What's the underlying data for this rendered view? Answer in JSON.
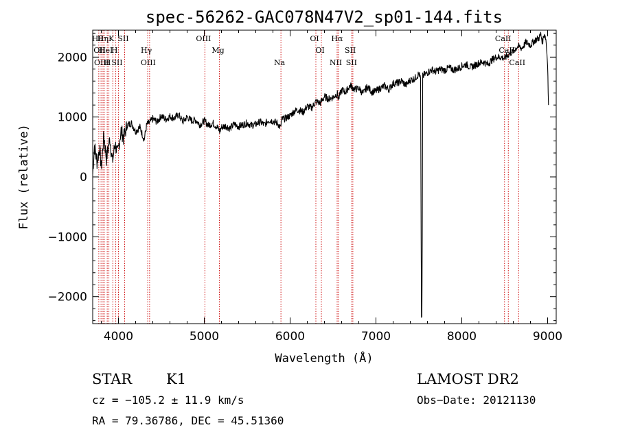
{
  "chart_data": {
    "type": "line",
    "title": "spec-56262-GAC078N47V2_sp01-144.fits",
    "xlabel": "Wavelength (Å)",
    "ylabel": "Flux (relative)",
    "xlim": [
      3700,
      9100
    ],
    "ylim": [
      -2450,
      2450
    ],
    "x_ticks": [
      4000,
      5000,
      6000,
      7000,
      8000,
      9000
    ],
    "y_ticks": [
      -2000,
      -1000,
      0,
      1000,
      2000
    ],
    "grid": false,
    "series": [
      {
        "x": [
          3700,
          3720,
          3750,
          3780,
          3800,
          3830,
          3860,
          3900,
          3930,
          3960,
          3990,
          4030,
          4060,
          4100,
          4150,
          4200,
          4250,
          4300,
          4330,
          4360,
          4400,
          4450,
          4500,
          4550,
          4600,
          4650,
          4700,
          4750,
          4800,
          4850,
          4900,
          4950,
          5000,
          5050,
          5100,
          5150,
          5180,
          5200,
          5250,
          5300,
          5350,
          5400,
          5450,
          5500,
          5550,
          5600,
          5650,
          5700,
          5750,
          5800,
          5850,
          5890,
          5900,
          5950,
          6000,
          6050,
          6100,
          6150,
          6200,
          6250,
          6300,
          6350,
          6400,
          6450,
          6500,
          6550,
          6563,
          6600,
          6650,
          6700,
          6750,
          6800,
          6850,
          6900,
          6950,
          7000,
          7050,
          7100,
          7150,
          7200,
          7250,
          7300,
          7350,
          7400,
          7450,
          7500,
          7520,
          7530,
          7535,
          7540,
          7545,
          7560,
          7600,
          7650,
          7700,
          7750,
          7800,
          7850,
          7900,
          7950,
          8000,
          8050,
          8100,
          8150,
          8200,
          8250,
          8300,
          8350,
          8400,
          8450,
          8500,
          8550,
          8600,
          8650,
          8700,
          8750,
          8800,
          8850,
          8900,
          8920,
          8940,
          8960,
          8980,
          9000,
          9010
        ],
        "y": [
          50,
          520,
          250,
          480,
          150,
          700,
          300,
          650,
          250,
          560,
          380,
          780,
          650,
          860,
          900,
          760,
          830,
          620,
          880,
          900,
          970,
          920,
          1020,
          960,
          1010,
          980,
          1040,
          920,
          1000,
          940,
          950,
          870,
          940,
          860,
          900,
          830,
          760,
          830,
          850,
          810,
          880,
          840,
          870,
          900,
          860,
          880,
          920,
          870,
          950,
          930,
          900,
          820,
          960,
          980,
          1020,
          1100,
          1120,
          1080,
          1180,
          1150,
          1260,
          1230,
          1340,
          1300,
          1330,
          1390,
          1300,
          1450,
          1420,
          1530,
          1460,
          1480,
          1390,
          1510,
          1420,
          1430,
          1480,
          1520,
          1460,
          1560,
          1570,
          1600,
          1530,
          1620,
          1640,
          1720,
          1650,
          -2370,
          -2370,
          -1000,
          1680,
          1700,
          1740,
          1790,
          1760,
          1800,
          1780,
          1820,
          1790,
          1800,
          1850,
          1880,
          1830,
          1860,
          1900,
          1920,
          1880,
          1950,
          2000,
          2000,
          1980,
          2050,
          2100,
          2180,
          2150,
          2250,
          2200,
          2280,
          2320,
          2380,
          2250,
          2400,
          2300,
          1900,
          1200
        ]
      }
    ],
    "lines": [
      {
        "wl": 3771,
        "label": "Hθ"
      },
      {
        "wl": 3797,
        "label": "OII"
      },
      {
        "wl": 3820,
        "label": "OIII"
      },
      {
        "wl": 3835,
        "label": "Hη"
      },
      {
        "wl": 3869,
        "label": "HeI"
      },
      {
        "wl": 3889,
        "label": "H"
      },
      {
        "wl": 3934,
        "label": "K"
      },
      {
        "wl": 3969,
        "label": "H"
      },
      {
        "wl": 4000,
        "label": "SII"
      },
      {
        "wl": 4072,
        "label": "SII"
      },
      {
        "wl": 4341,
        "label": "Hγ"
      },
      {
        "wl": 4363,
        "label": "OIII"
      },
      {
        "wl": 5007,
        "label": "OIII"
      },
      {
        "wl": 5176,
        "label": "Mg"
      },
      {
        "wl": 5893,
        "label": "Na"
      },
      {
        "wl": 6300,
        "label": "OI"
      },
      {
        "wl": 6364,
        "label": "OI"
      },
      {
        "wl": 6548,
        "label": "NII"
      },
      {
        "wl": 6563,
        "label": "Hα"
      },
      {
        "wl": 6717,
        "label": "SII"
      },
      {
        "wl": 6731,
        "label": "SII"
      },
      {
        "wl": 8498,
        "label": "CaII"
      },
      {
        "wl": 8542,
        "label": "CaII"
      },
      {
        "wl": 8662,
        "label": "CaII"
      }
    ]
  },
  "info": {
    "class": "STAR",
    "subclass": "K1",
    "survey": "LAMOST DR2",
    "cz": "cz = −105.2 ± 11.9 km/s",
    "obs_date": "Obs−Date: 20121130",
    "radec": "RA =  79.36786, DEC =  45.51360"
  },
  "colors": {
    "axes": "#000000",
    "spectrum": "#000000",
    "line_markers": "#cc0000"
  }
}
